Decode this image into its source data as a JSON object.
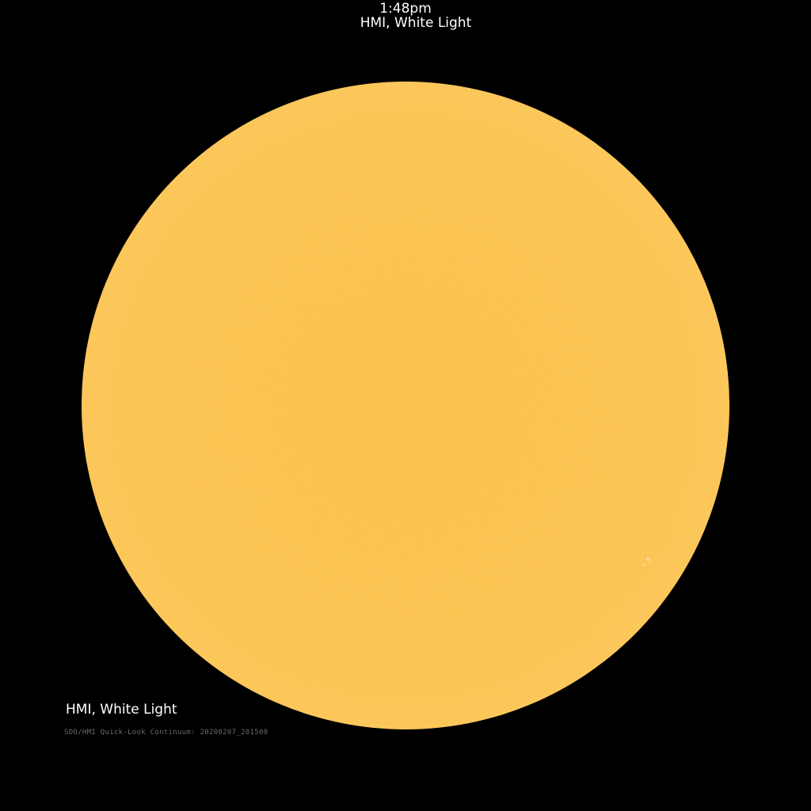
{
  "header": {
    "time": "1:48pm",
    "title": "HMI, White Light"
  },
  "image": {
    "subject": "sun-disk",
    "disk_color": "#fbbf45",
    "background_color": "#000000"
  },
  "caption": {
    "instrument": "HMI, White Light",
    "source": "SDO/HMI Quick-Look Continuum: 20200207_201500"
  }
}
